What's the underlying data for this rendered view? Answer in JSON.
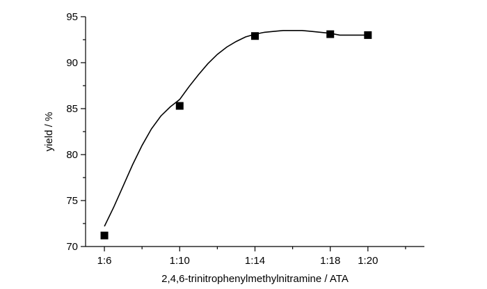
{
  "chart_data": {
    "type": "scatter",
    "xlabel": "2,4,6-trinitrophenylmethylnitramine / ATA",
    "ylabel": "yield / %",
    "categories": [
      "1:6",
      "1:10",
      "1:14",
      "1:18",
      "1:20"
    ],
    "ratio_values": [
      6,
      10,
      14,
      18,
      20
    ],
    "ylim": [
      70,
      95
    ],
    "y_ticks": [
      70,
      75,
      80,
      85,
      90,
      95
    ],
    "grid": false,
    "series": [
      {
        "values": [
          71.2,
          85.3,
          92.9,
          93.1,
          93.0
        ],
        "marker": "square",
        "color": "#000000"
      }
    ],
    "fitted_curve": {
      "x": [
        6,
        6.5,
        7,
        7.5,
        8,
        8.5,
        9,
        9.5,
        10,
        10.5,
        11,
        11.5,
        12,
        12.5,
        13,
        13.5,
        14,
        14.5,
        15,
        15.5,
        16,
        16.5,
        17,
        17.5,
        18,
        18.5,
        19,
        19.5,
        20
      ],
      "y": [
        72.2,
        74.3,
        76.6,
        78.9,
        81.0,
        82.8,
        84.2,
        85.2,
        86.0,
        87.4,
        88.7,
        89.9,
        90.9,
        91.7,
        92.3,
        92.8,
        93.1,
        93.3,
        93.4,
        93.5,
        93.5,
        93.5,
        93.4,
        93.3,
        93.2,
        93.0,
        93.0,
        93.0,
        93.0
      ]
    }
  }
}
